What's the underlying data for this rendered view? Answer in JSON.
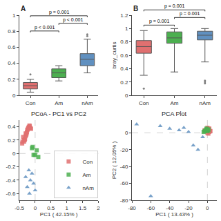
{
  "chart_data": [
    {
      "type": "box",
      "title": "A",
      "categories": [
        "Con",
        "Am",
        "nAm"
      ],
      "colors": [
        "#E07070",
        "#4CAF50",
        "#6090C0"
      ],
      "values": [
        {
          "q1": 0.08,
          "median": 0.12,
          "q3": 0.16,
          "whislo": 0.04,
          "whishi": 0.2,
          "fliers": [
            0.26
          ]
        },
        {
          "q1": 0.22,
          "median": 0.28,
          "q3": 0.33,
          "whislo": 0.18,
          "whishi": 0.37,
          "fliers": []
        },
        {
          "q1": 0.37,
          "median": 0.45,
          "q3": 0.52,
          "whislo": 0.28,
          "whishi": 0.7,
          "fliers": [
            0.74,
            0.76
          ]
        }
      ],
      "significance": [
        {
          "from": "Con",
          "to": "Am",
          "label": "p < 0.001"
        },
        {
          "from": "Con",
          "to": "nAm",
          "label": "p = 0.001"
        },
        {
          "from": "Am",
          "to": "nAm",
          "label": "p < 0.001"
        }
      ],
      "ylim": [
        0,
        1.0
      ],
      "yticks": [
        0,
        0.2,
        0.4,
        0.6,
        0.8,
        1
      ],
      "grid": false
    },
    {
      "type": "box",
      "title": "B",
      "ylabel": "bray_curtis",
      "categories": [
        "Con",
        "Am",
        "nAm"
      ],
      "colors": [
        "#E07070",
        "#4CAF50",
        "#6090C0"
      ],
      "values": [
        {
          "q1": 0.63,
          "median": 0.73,
          "q3": 0.82,
          "whislo": 0.3,
          "whishi": 0.97,
          "fliers": [
            0.1
          ]
        },
        {
          "q1": 0.78,
          "median": 0.86,
          "q3": 0.95,
          "whislo": 0.35,
          "whishi": 1.0,
          "fliers": []
        },
        {
          "q1": 0.83,
          "median": 0.9,
          "q3": 0.96,
          "whislo": 0.5,
          "whishi": 1.0,
          "fliers": [
            0.18,
            0.2,
            0.22
          ]
        }
      ],
      "significance": [
        {
          "from": "Con",
          "to": "Am",
          "label": "p = 0.001"
        },
        {
          "from": "Con",
          "to": "nAm",
          "label": "p = 0.001"
        },
        {
          "from": "Am",
          "to": "nAm",
          "label": "p = 0.001"
        }
      ],
      "ylim": [
        0,
        1.2
      ],
      "yticks": [
        0,
        0.2,
        0.4,
        0.6,
        0.8,
        1,
        1.2
      ],
      "grid": false
    },
    {
      "type": "scatter",
      "title": "PCoA - PC1 vs PC2",
      "xlabel": "PC1 ( 42.15% )",
      "xlim": [
        -0.5,
        2.0
      ],
      "ylim": [
        -0.7,
        0.5
      ],
      "xticks": [
        -0.5,
        0,
        0.5,
        1,
        1.5,
        2
      ],
      "yticks": [
        -0.6,
        -0.4,
        -0.2,
        0,
        0.2,
        0.4
      ],
      "hlines": [
        0
      ],
      "vlines": [
        0
      ],
      "series": [
        {
          "name": "Con",
          "color": "#E07070",
          "marker": "square",
          "x": [
            -0.35,
            -0.3,
            -0.25,
            -0.22,
            -0.28,
            -0.32,
            -0.2,
            -0.18,
            -0.15,
            -0.4,
            -0.38,
            -0.26,
            -0.24,
            -0.3,
            -0.33,
            -0.21,
            -0.17,
            -0.13,
            -0.41,
            -0.35,
            -0.27
          ],
          "y": [
            0.2,
            0.3,
            0.35,
            0.38,
            0.28,
            0.22,
            0.4,
            0.42,
            0.38,
            0.18,
            0.25,
            0.32,
            0.36,
            0.26,
            0.2,
            0.38,
            0.41,
            0.37,
            0.15,
            0.18,
            0.3
          ]
        },
        {
          "name": "Am",
          "color": "#4CAF50",
          "marker": "square",
          "x": [
            -0.05,
            0.05,
            0.1,
            -0.1,
            0.0,
            -0.08
          ],
          "y": [
            -0.02,
            0.05,
            -0.05,
            0.08,
            -0.02,
            0.1
          ]
        },
        {
          "name": "nAm",
          "color": "#6090C0",
          "marker": "triangle-up",
          "x": [
            -0.2,
            -0.1,
            -0.3,
            -0.15,
            -0.05,
            -0.25,
            0.0,
            -0.18
          ],
          "y": [
            -0.25,
            -0.3,
            -0.35,
            -0.4,
            -0.45,
            -0.5,
            -0.55,
            -0.6
          ]
        }
      ],
      "legend": "lower right",
      "grid": false
    },
    {
      "type": "scatter",
      "title": "PCA Plot",
      "xlabel": "PC1 ( 13.43% )",
      "ylabel": "PC2 ( 12.05% )",
      "xlim": [
        -80,
        10
      ],
      "ylim": [
        -80,
        15
      ],
      "xticks": [
        -80,
        -60,
        -40,
        -20,
        0
      ],
      "yticks": [
        -80,
        -60,
        -40,
        -20,
        0
      ],
      "hlines": [
        0
      ],
      "vlines": [
        0
      ],
      "series": [
        {
          "color": "#E07070",
          "marker": "square",
          "x": [
            -2,
            -1,
            0,
            1,
            2,
            3,
            -3,
            0,
            1,
            2,
            -1,
            0,
            1,
            2,
            3
          ],
          "y": [
            2,
            4,
            6,
            3,
            5,
            2,
            3,
            0,
            -1,
            2,
            4,
            3,
            5,
            1,
            2
          ]
        },
        {
          "color": "#4CAF50",
          "marker": "square",
          "x": [
            -3,
            -2,
            -1,
            0,
            1,
            -4,
            -1,
            0,
            1
          ],
          "y": [
            2,
            3,
            4,
            2,
            3,
            1,
            5,
            3,
            4
          ]
        },
        {
          "color": "#6090C0",
          "marker": "triangle-up",
          "x": [
            -75,
            -50,
            -25,
            -10,
            -60,
            -40,
            -30,
            -20,
            -15,
            -5
          ],
          "y": [
            10,
            8,
            6,
            -20,
            -75,
            5,
            3,
            1,
            -15,
            -5
          ]
        }
      ],
      "grid": false
    }
  ]
}
